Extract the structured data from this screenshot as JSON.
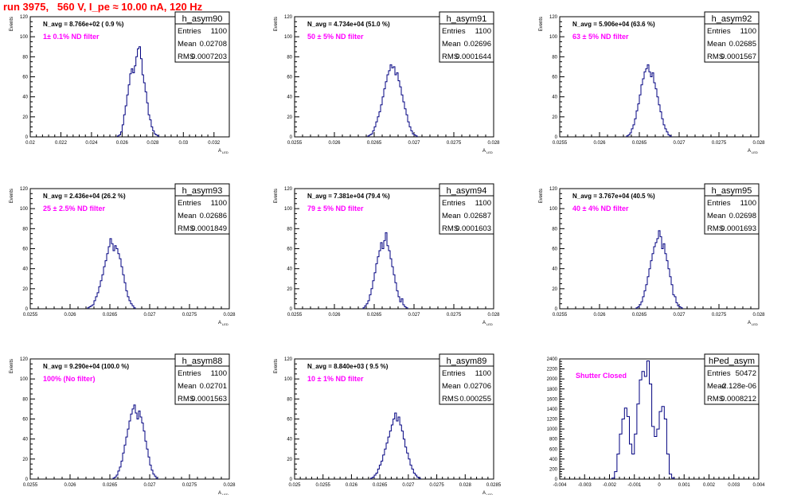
{
  "title": "run 3975,   560 V, I_pe ≈ 10.00 nA, 120 Hz",
  "colors": {
    "title": "#ff0000",
    "hist_line": "#000080",
    "annotation": "#ff00ff",
    "frame": "#000000"
  },
  "chart_data": [
    {
      "type": "histogram",
      "hist_name": "h_asym90",
      "stats": {
        "entries_label": "Entries",
        "entries": "1100",
        "mean_label": "Mean",
        "mean": "0.02708",
        "rms_label": "RMS",
        "rms": "0.0007203"
      },
      "n_avg_label": "N_avg = 8.766e+02 ( 0.9 %)",
      "filter_label": "1± 0.1% ND filter",
      "ylabel": "Events",
      "xlabel": "A",
      "xlabel_sub": "LED",
      "xlim": [
        0.02,
        0.033
      ],
      "ylim": [
        0,
        120
      ],
      "xticks": [
        0.02,
        0.022,
        0.024,
        0.026,
        0.028,
        0.03,
        0.032
      ],
      "xtick_labels": [
        "0.02",
        "0.022",
        "0.024",
        "0.026",
        "0.028",
        "0.03",
        "0.032"
      ],
      "yticks": [
        0,
        20,
        40,
        60,
        80,
        100,
        120
      ],
      "ytick_labels": [
        "0",
        "20",
        "40",
        "60",
        "80",
        "100",
        "120"
      ],
      "bin_width": 0.0001,
      "bins_start": 0.0257,
      "counts": [
        1,
        2,
        5,
        12,
        22,
        31,
        42,
        52,
        63,
        68,
        64,
        71,
        80,
        88,
        90,
        78,
        62,
        54,
        45,
        34,
        22,
        17,
        10,
        6,
        3,
        2,
        1
      ]
    },
    {
      "type": "histogram",
      "hist_name": "h_asym91",
      "stats": {
        "entries_label": "Entries",
        "entries": "1100",
        "mean_label": "Mean",
        "mean": "0.02696",
        "rms_label": "RMS",
        "rms": "0.0001644"
      },
      "n_avg_label": "N_avg = 4.734e+04 (51.0 %)",
      "filter_label": "50 ± 5% ND filter",
      "ylabel": "Events",
      "xlabel": "A",
      "xlabel_sub": "LED",
      "xlim": [
        0.0255,
        0.028
      ],
      "ylim": [
        0,
        120
      ],
      "xticks": [
        0.0255,
        0.026,
        0.0265,
        0.027,
        0.0275,
        0.028
      ],
      "xtick_labels": [
        "0.0255",
        "0.026",
        "0.0265",
        "0.027",
        "0.0275",
        "0.028"
      ],
      "yticks": [
        0,
        20,
        40,
        60,
        80,
        100,
        120
      ],
      "ytick_labels": [
        "0",
        "20",
        "40",
        "60",
        "80",
        "100",
        "120"
      ],
      "bin_width": 2e-05,
      "bins_start": 0.02642,
      "counts": [
        1,
        2,
        3,
        6,
        10,
        15,
        20,
        25,
        32,
        40,
        48,
        55,
        62,
        66,
        72,
        69,
        70,
        62,
        64,
        56,
        50,
        42,
        35,
        28,
        22,
        15,
        10,
        6,
        3,
        2,
        1
      ]
    },
    {
      "type": "histogram",
      "hist_name": "h_asym92",
      "stats": {
        "entries_label": "Entries",
        "entries": "1100",
        "mean_label": "Mean",
        "mean": "0.02685",
        "rms_label": "RMS",
        "rms": "0.0001567"
      },
      "n_avg_label": "N_avg = 5.906e+04 (63.6 %)",
      "filter_label": "63 ± 5% ND filter",
      "ylabel": "Events",
      "xlabel": "A",
      "xlabel_sub": "LED",
      "xlim": [
        0.0255,
        0.028
      ],
      "ylim": [
        0,
        120
      ],
      "xticks": [
        0.0255,
        0.026,
        0.0265,
        0.027,
        0.0275,
        0.028
      ],
      "xtick_labels": [
        "0.0255",
        "0.026",
        "0.0265",
        "0.027",
        "0.0275",
        "0.028"
      ],
      "yticks": [
        0,
        20,
        40,
        60,
        80,
        100,
        120
      ],
      "ytick_labels": [
        "0",
        "20",
        "40",
        "60",
        "80",
        "100",
        "120"
      ],
      "bin_width": 2e-05,
      "bins_start": 0.02634,
      "counts": [
        1,
        2,
        4,
        8,
        12,
        18,
        26,
        33,
        42,
        52,
        58,
        65,
        68,
        72,
        65,
        60,
        64,
        54,
        48,
        40,
        32,
        25,
        18,
        12,
        8,
        5,
        2,
        1
      ]
    },
    {
      "type": "histogram",
      "hist_name": "h_asym93",
      "stats": {
        "entries_label": "Entries",
        "entries": "1100",
        "mean_label": "Mean",
        "mean": "0.02686",
        "rms_label": "RMS",
        "rms": "0.0001849"
      },
      "n_avg_label": "N_avg = 2.436e+04 (26.2 %)",
      "filter_label": "25 ± 2.5% ND filter",
      "ylabel": "Events",
      "xlabel": "A",
      "xlabel_sub": "LED",
      "xlim": [
        0.0255,
        0.028
      ],
      "ylim": [
        0,
        120
      ],
      "xticks": [
        0.0255,
        0.026,
        0.0265,
        0.027,
        0.0275,
        0.028
      ],
      "xtick_labels": [
        "0.0255",
        "0.026",
        "0.0265",
        "0.027",
        "0.0275",
        "0.028"
      ],
      "yticks": [
        0,
        20,
        40,
        60,
        80,
        100,
        120
      ],
      "ytick_labels": [
        "0",
        "20",
        "40",
        "60",
        "80",
        "100",
        "120"
      ],
      "bin_width": 2e-05,
      "bins_start": 0.02622,
      "counts": [
        1,
        2,
        3,
        4,
        8,
        12,
        16,
        22,
        28,
        34,
        42,
        48,
        55,
        62,
        70,
        65,
        58,
        63,
        60,
        55,
        50,
        42,
        34,
        26,
        18,
        12,
        8,
        5,
        3,
        1
      ]
    },
    {
      "type": "histogram",
      "hist_name": "h_asym94",
      "stats": {
        "entries_label": "Entries",
        "entries": "1100",
        "mean_label": "Mean",
        "mean": "0.02687",
        "rms_label": "RMS",
        "rms": "0.0001603"
      },
      "n_avg_label": "N_avg = 7.381e+04 (79.4 %)",
      "filter_label": "79 ± 5% ND filter",
      "ylabel": "Events",
      "xlabel": "A",
      "xlabel_sub": "LED",
      "xlim": [
        0.0255,
        0.028
      ],
      "ylim": [
        0,
        120
      ],
      "xticks": [
        0.0255,
        0.026,
        0.0265,
        0.027,
        0.0275,
        0.028
      ],
      "xtick_labels": [
        "0.0255",
        "0.026",
        "0.0265",
        "0.027",
        "0.0275",
        "0.028"
      ],
      "yticks": [
        0,
        20,
        40,
        60,
        80,
        100,
        120
      ],
      "ytick_labels": [
        "0",
        "20",
        "40",
        "60",
        "80",
        "100",
        "120"
      ],
      "bin_width": 2e-05,
      "bins_start": 0.02636,
      "counts": [
        1,
        3,
        5,
        8,
        14,
        20,
        28,
        36,
        45,
        52,
        58,
        66,
        60,
        68,
        76,
        63,
        58,
        50,
        42,
        34,
        26,
        18,
        12,
        7,
        10,
        4,
        2,
        1
      ]
    },
    {
      "type": "histogram",
      "hist_name": "h_asym95",
      "stats": {
        "entries_label": "Entries",
        "entries": "1100",
        "mean_label": "Mean",
        "mean": "0.02698",
        "rms_label": "RMS",
        "rms": "0.0001693"
      },
      "n_avg_label": "N_avg = 3.767e+04 (40.5 %)",
      "filter_label": "40 ± 4% ND filter",
      "ylabel": "Events",
      "xlabel": "A",
      "xlabel_sub": "LED",
      "xlim": [
        0.0255,
        0.028
      ],
      "ylim": [
        0,
        120
      ],
      "xticks": [
        0.0255,
        0.026,
        0.0265,
        0.027,
        0.0275,
        0.028
      ],
      "xtick_labels": [
        "0.0255",
        "0.026",
        "0.0265",
        "0.027",
        "0.0275",
        "0.028"
      ],
      "yticks": [
        0,
        20,
        40,
        60,
        80,
        100,
        120
      ],
      "ytick_labels": [
        "0",
        "20",
        "40",
        "60",
        "80",
        "100",
        "120"
      ],
      "bin_width": 2e-05,
      "bins_start": 0.02646,
      "counts": [
        1,
        2,
        4,
        7,
        12,
        18,
        24,
        32,
        40,
        48,
        55,
        62,
        66,
        70,
        78,
        72,
        60,
        65,
        55,
        48,
        40,
        32,
        24,
        14,
        12,
        6,
        3,
        2,
        1
      ]
    },
    {
      "type": "histogram",
      "hist_name": "h_asym88",
      "stats": {
        "entries_label": "Entries",
        "entries": "1100",
        "mean_label": "Mean",
        "mean": "0.02701",
        "rms_label": "RMS",
        "rms": "0.0001563"
      },
      "n_avg_label": "N_avg = 9.290e+04 (100.0 %)",
      "filter_label": "100% (No filter)",
      "ylabel": "Events",
      "xlabel": "A",
      "xlabel_sub": "LED",
      "xlim": [
        0.0255,
        0.028
      ],
      "ylim": [
        0,
        120
      ],
      "xticks": [
        0.0255,
        0.026,
        0.0265,
        0.027,
        0.0275,
        0.028
      ],
      "xtick_labels": [
        "0.0255",
        "0.026",
        "0.0265",
        "0.027",
        "0.0275",
        "0.028"
      ],
      "yticks": [
        0,
        20,
        40,
        60,
        80,
        100,
        120
      ],
      "ytick_labels": [
        "0",
        "20",
        "40",
        "60",
        "80",
        "100",
        "120"
      ],
      "bin_width": 2e-05,
      "bins_start": 0.02654,
      "counts": [
        1,
        2,
        4,
        8,
        12,
        18,
        26,
        34,
        42,
        50,
        58,
        65,
        70,
        74,
        66,
        60,
        68,
        62,
        56,
        48,
        38,
        30,
        22,
        14,
        9,
        5,
        3,
        1
      ]
    },
    {
      "type": "histogram",
      "hist_name": "h_asym89",
      "stats": {
        "entries_label": "Entries",
        "entries": "1100",
        "mean_label": "Mean",
        "mean": "0.02706",
        "rms_label": "RMS",
        "rms": "0.000255"
      },
      "n_avg_label": "N_avg = 8.840e+03 ( 9.5 %)",
      "filter_label": "10 ± 1% ND filter",
      "ylabel": "Events",
      "xlabel": "A",
      "xlabel_sub": "LED",
      "xlim": [
        0.025,
        0.0285
      ],
      "ylim": [
        0,
        120
      ],
      "xticks": [
        0.025,
        0.0255,
        0.026,
        0.0265,
        0.027,
        0.0275,
        0.028,
        0.0285
      ],
      "xtick_labels": [
        "0.025",
        "0.0255",
        "0.026",
        "0.0265",
        "0.027",
        "0.0275",
        "0.028",
        "0.0285"
      ],
      "yticks": [
        0,
        20,
        40,
        60,
        80,
        100,
        120
      ],
      "ytick_labels": [
        "0",
        "20",
        "40",
        "60",
        "80",
        "100",
        "120"
      ],
      "bin_width": 3e-05,
      "bins_start": 0.02634,
      "counts": [
        1,
        2,
        4,
        6,
        10,
        14,
        18,
        24,
        30,
        36,
        42,
        48,
        54,
        60,
        66,
        58,
        62,
        54,
        48,
        40,
        32,
        26,
        20,
        14,
        10,
        6,
        4,
        2,
        1
      ]
    },
    {
      "type": "histogram",
      "hist_name": "hPed_asym",
      "stats": {
        "entries_label": "Entries",
        "entries": "50472",
        "mean_label": "Mean",
        "mean": "-2.128e-06",
        "rms_label": "RMS",
        "rms": "0.0008212"
      },
      "filter_label": "Shutter Closed",
      "xlim": [
        -0.004,
        0.004
      ],
      "ylim": [
        0,
        2400
      ],
      "xticks": [
        -0.004,
        -0.003,
        -0.002,
        -0.001,
        0,
        0.001,
        0.002,
        0.003,
        0.004
      ],
      "xtick_labels": [
        "-0.004",
        "-0.003",
        "-0.002",
        "-0.001",
        "0",
        "0.001",
        "0.002",
        "0.003",
        "0.004"
      ],
      "yticks": [
        0,
        200,
        400,
        600,
        800,
        1000,
        1200,
        1400,
        1600,
        1800,
        2000,
        2200,
        2400
      ],
      "ytick_labels": [
        "0",
        "200",
        "400",
        "600",
        "800",
        "1000",
        "1200",
        "1400",
        "1600",
        "1800",
        "2000",
        "2200",
        "2400"
      ],
      "bin_width": 0.0001,
      "bins_start": -0.0019,
      "counts": [
        20,
        150,
        500,
        900,
        1200,
        1420,
        1250,
        700,
        500,
        900,
        1500,
        1980,
        2150,
        2050,
        2360,
        1900,
        1050,
        850,
        1000,
        1350,
        1450,
        1200,
        500,
        100,
        20
      ]
    }
  ]
}
